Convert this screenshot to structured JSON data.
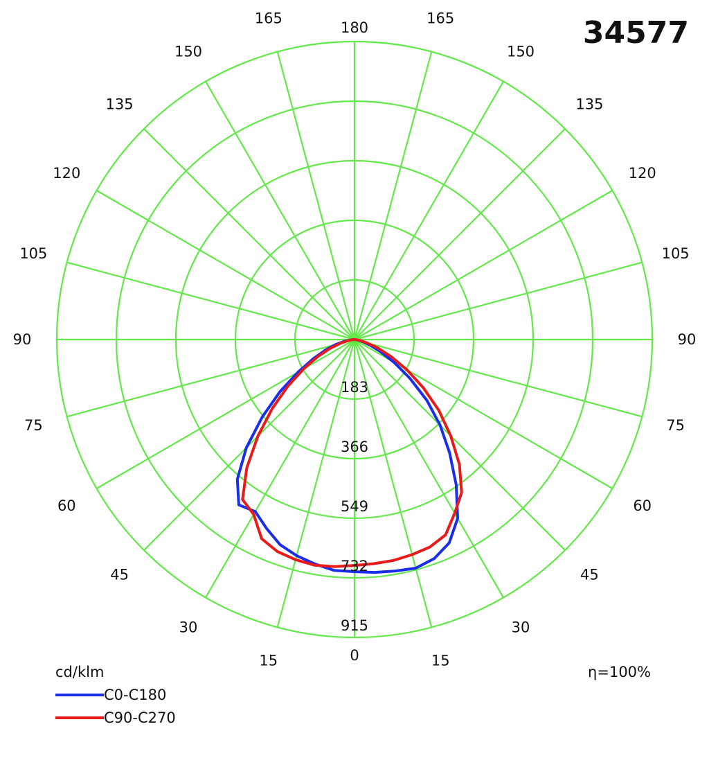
{
  "chart_data": {
    "type": "polar",
    "title": "34577",
    "unit_label": "cd/klm",
    "efficiency_label": "η=100%",
    "radial_ticks": [
      "183",
      "366",
      "549",
      "732",
      "915"
    ],
    "radial_values": [
      183,
      366,
      549,
      732,
      915
    ],
    "rmax": 915,
    "angle_ticks_left": [
      "0",
      "15",
      "30",
      "45",
      "60",
      "75",
      "90",
      "105",
      "120",
      "135",
      "150",
      "165",
      "180"
    ],
    "angle_ticks_right": [
      "15",
      "30",
      "45",
      "60",
      "75",
      "90",
      "105",
      "120",
      "135",
      "150",
      "165"
    ],
    "angle_values": [
      0,
      15,
      30,
      45,
      60,
      75,
      90,
      105,
      120,
      135,
      150,
      165,
      180
    ],
    "grid_color": "#63e84a",
    "legend": [
      {
        "name": "C0-C180",
        "color": "#1a2ee8"
      },
      {
        "name": "C90-C270",
        "color": "#e81a1a"
      }
    ],
    "series": [
      {
        "name": "C0-C180",
        "color": "#1a2ee8",
        "angles": [
          0,
          5,
          10,
          15,
          20,
          25,
          30,
          35,
          40,
          45,
          50,
          55,
          60,
          65,
          70,
          75,
          80,
          85,
          90
        ],
        "left": [
          713,
          712,
          700,
          687,
          670,
          640,
          610,
          620,
          560,
          470,
          370,
          280,
          200,
          140,
          95,
          60,
          30,
          10,
          0
        ],
        "right": [
          713,
          718,
          722,
          727,
          716,
          689,
          634,
          545,
          455,
          372,
          290,
          208,
          140,
          88,
          52,
          28,
          12,
          4,
          0
        ]
      },
      {
        "name": "C90-C270",
        "color": "#e81a1a",
        "angles": [
          0,
          5,
          10,
          15,
          20,
          25,
          30,
          35,
          40,
          45,
          50,
          55,
          60,
          65,
          70,
          75,
          80,
          85,
          90
        ],
        "left": [
          694,
          700,
          704,
          700,
          693,
          675,
          620,
          600,
          515,
          420,
          330,
          250,
          180,
          125,
          80,
          45,
          20,
          6,
          0
        ],
        "right": [
          694,
          691,
          689,
          684,
          678,
          662,
          616,
          574,
          502,
          418,
          338,
          258,
          186,
          124,
          76,
          40,
          16,
          4,
          0
        ]
      }
    ]
  }
}
